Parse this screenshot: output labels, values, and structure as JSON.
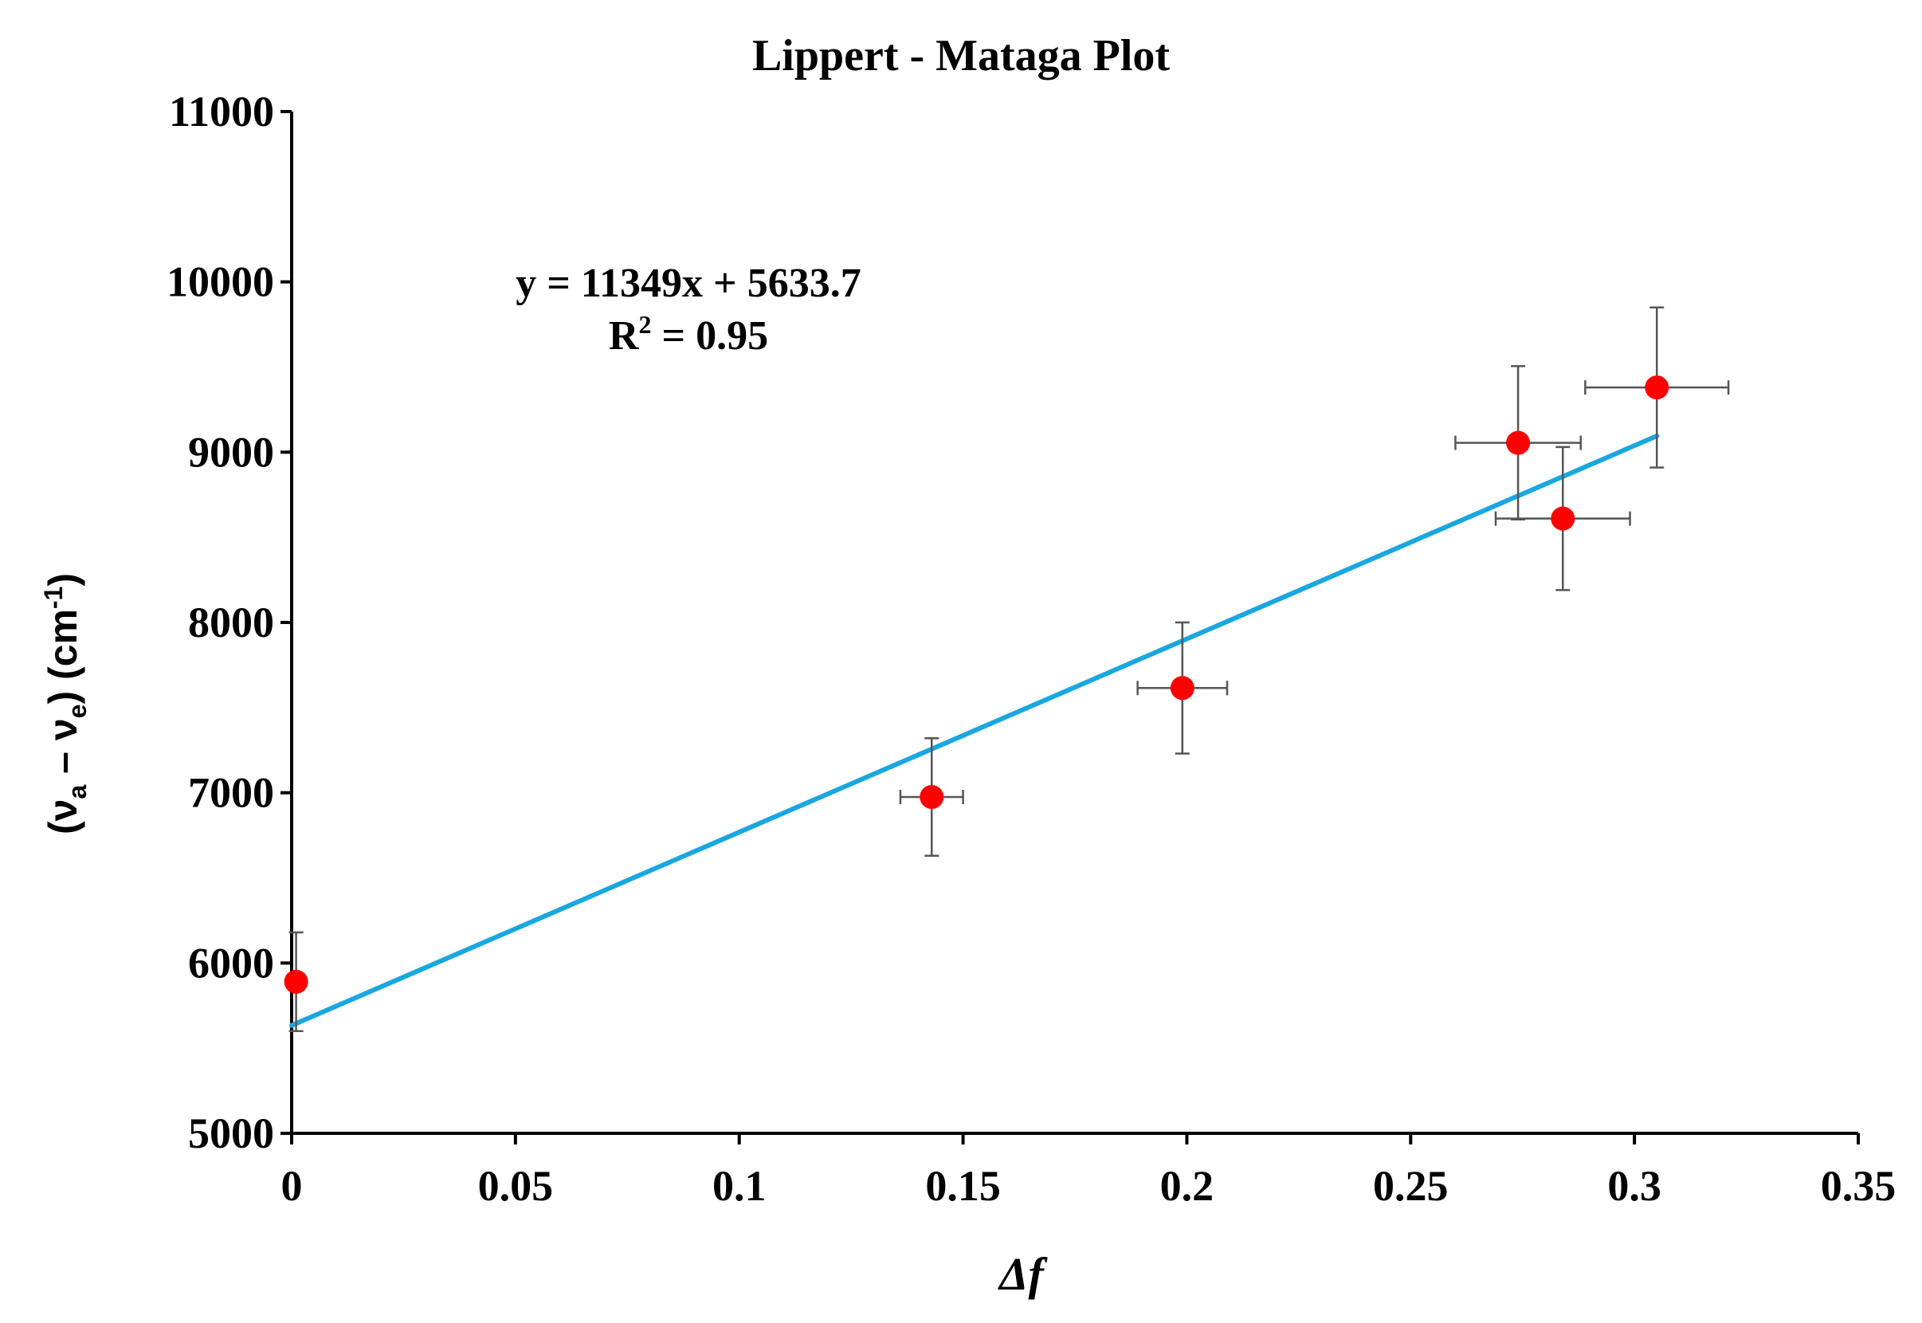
{
  "chart_data": {
    "type": "scatter",
    "title": "Lippert - Mataga Plot",
    "xlabel": "Δf",
    "ylabel_parts": {
      "open": "(ν",
      "sub_a": "a",
      "minus": " – ν",
      "sub_e": "e",
      "close": ") (cm",
      "sup": "-1",
      "end": ")"
    },
    "xlim": [
      0,
      0.35
    ],
    "ylim": [
      5000,
      11000
    ],
    "x_ticks": [
      0,
      0.05,
      0.1,
      0.15,
      0.2,
      0.25,
      0.3,
      0.35
    ],
    "x_tick_labels": [
      "0",
      "0.05",
      "0.1",
      "0.15",
      "0.2",
      "0.25",
      "0.3",
      "0.35"
    ],
    "y_ticks": [
      5000,
      6000,
      7000,
      8000,
      9000,
      10000,
      11000
    ],
    "y_tick_labels": [
      "5000",
      "6000",
      "7000",
      "8000",
      "9000",
      "10000",
      "11000"
    ],
    "points": [
      {
        "x": 0.001,
        "y": 5890,
        "xerr": 0.0,
        "yerr": 290
      },
      {
        "x": 0.143,
        "y": 6975,
        "xerr": 0.007,
        "yerr": 345
      },
      {
        "x": 0.199,
        "y": 7615,
        "xerr": 0.01,
        "yerr": 385
      },
      {
        "x": 0.274,
        "y": 9055,
        "xerr": 0.014,
        "yerr": 450
      },
      {
        "x": 0.284,
        "y": 8610,
        "xerr": 0.015,
        "yerr": 420
      },
      {
        "x": 0.305,
        "y": 9380,
        "xerr": 0.016,
        "yerr": 470
      }
    ],
    "fit": {
      "slope": 11349,
      "intercept": 5633.7,
      "x_range": [
        0,
        0.305
      ]
    },
    "equation_text": "y = 11349x + 5633.7",
    "r2_label": "R",
    "r2_sup": "2",
    "r2_value": " = 0.95",
    "colors": {
      "points": "#ff0000",
      "fit_line": "#1aa7e0",
      "error_bars": "#555555",
      "axes": "#000000"
    }
  }
}
